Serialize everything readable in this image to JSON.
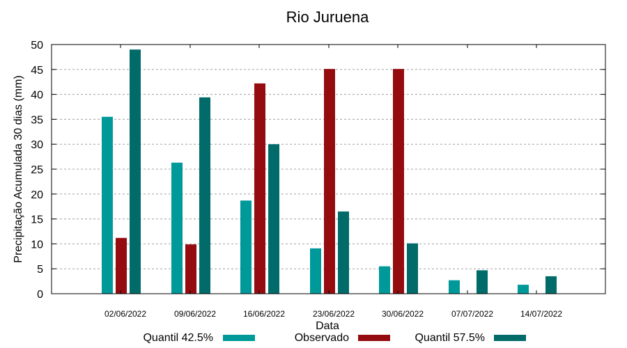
{
  "chart_data": {
    "type": "bar",
    "title": "Rio Juruena",
    "xlabel": "Data",
    "ylabel": "Precipitação Acumulada 30 dias (mm)",
    "ylim": [
      0,
      50
    ],
    "yticks": [
      0,
      5,
      10,
      15,
      20,
      25,
      30,
      35,
      40,
      45,
      50
    ],
    "grid": true,
    "legend_position": "bottom",
    "categories": [
      "02/06/2022",
      "09/06/2022",
      "16/06/2022",
      "23/06/2022",
      "30/06/2022",
      "07/07/2022",
      "14/07/2022"
    ],
    "series": [
      {
        "name": "Quantil 42.5%",
        "color": "#009999",
        "values": [
          35.5,
          26.3,
          18.7,
          9.1,
          5.5,
          2.7,
          1.8
        ]
      },
      {
        "name": "Observado",
        "color": "#940c0f",
        "values": [
          11.2,
          9.9,
          42.2,
          45.1,
          45.1,
          null,
          null
        ]
      },
      {
        "name": "Quantil 57.5%",
        "color": "#006b69",
        "values": [
          49.0,
          39.4,
          30.0,
          16.5,
          10.1,
          4.7,
          3.5
        ]
      }
    ]
  }
}
